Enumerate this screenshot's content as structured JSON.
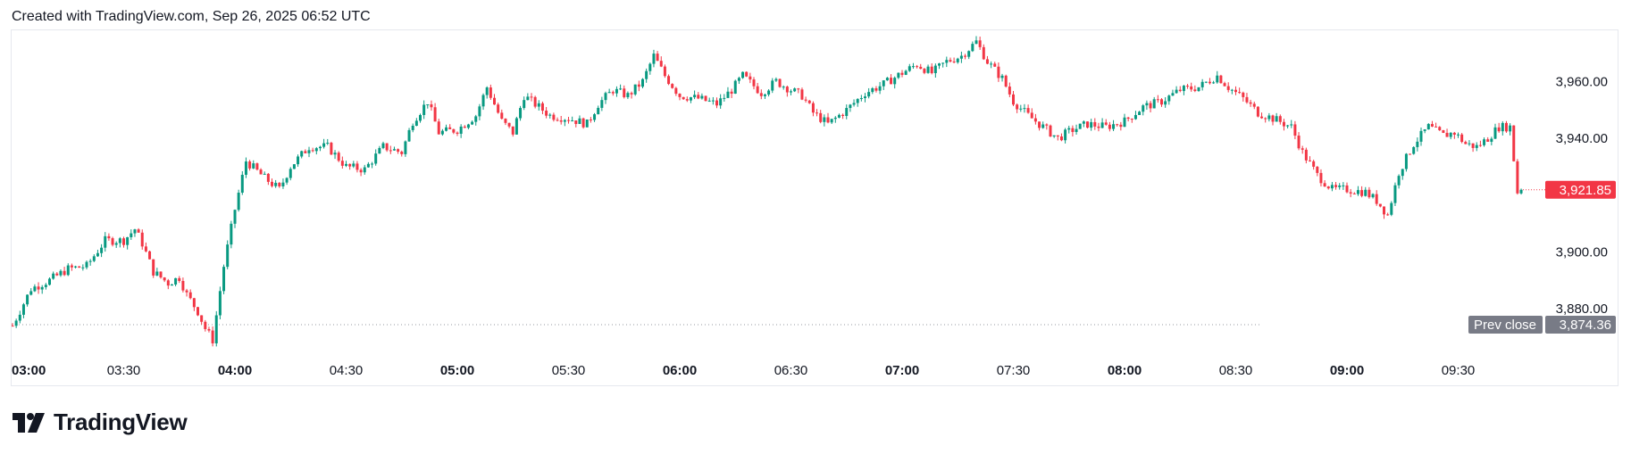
{
  "header": {
    "created_text": "Created with TradingView.com, Sep 26, 2025 06:52 UTC"
  },
  "logo": {
    "text": "TradingView",
    "icon": "tradingview-logo-icon"
  },
  "colors": {
    "up": "#089981",
    "down": "#f23645",
    "prev_close_tag": "#787b86",
    "last_price_tag": "#f23645"
  },
  "chart_data": {
    "type": "candlestick",
    "interval_minutes": 1,
    "x_tick_labels": [
      {
        "label": "03:00",
        "major": true
      },
      {
        "label": "03:30",
        "major": false
      },
      {
        "label": "04:00",
        "major": true
      },
      {
        "label": "04:30",
        "major": false
      },
      {
        "label": "05:00",
        "major": true
      },
      {
        "label": "05:30",
        "major": false
      },
      {
        "label": "06:00",
        "major": true
      },
      {
        "label": "06:30",
        "major": false
      },
      {
        "label": "07:00",
        "major": true
      },
      {
        "label": "07:30",
        "major": false
      },
      {
        "label": "08:00",
        "major": true
      },
      {
        "label": "08:30",
        "major": false
      },
      {
        "label": "09:00",
        "major": true
      },
      {
        "label": "09:30",
        "major": false
      }
    ],
    "y_tick_labels": [
      "3,960.00",
      "3,940.00",
      "3,900.00",
      "3,880.00"
    ],
    "y_ticks": [
      3960,
      3940,
      3900,
      3880
    ],
    "ylim": [
      3864,
      3978
    ],
    "x_start": "03:00",
    "x_end": "09:47",
    "last_price": {
      "label": "3,921.85",
      "value": 3921.85
    },
    "prev_close": {
      "label": "Prev close",
      "value_label": "3,874.36",
      "value": 3874.36
    },
    "price_path": [
      [
        "03:00",
        3874
      ],
      [
        "03:05",
        3887
      ],
      [
        "03:10",
        3890
      ],
      [
        "03:15",
        3894
      ],
      [
        "03:20",
        3895
      ],
      [
        "03:25",
        3904
      ],
      [
        "03:30",
        3904
      ],
      [
        "03:33",
        3908
      ],
      [
        "03:35",
        3903
      ],
      [
        "03:38",
        3893
      ],
      [
        "03:42",
        3889
      ],
      [
        "03:45",
        3891
      ],
      [
        "03:47",
        3885
      ],
      [
        "03:50",
        3879
      ],
      [
        "03:52",
        3873
      ],
      [
        "03:54",
        3869
      ],
      [
        "03:57",
        3895
      ],
      [
        "04:00",
        3915
      ],
      [
        "04:03",
        3932
      ],
      [
        "04:08",
        3926
      ],
      [
        "04:12",
        3922
      ],
      [
        "04:15",
        3930
      ],
      [
        "04:20",
        3937
      ],
      [
        "04:25",
        3937
      ],
      [
        "04:30",
        3930
      ],
      [
        "04:35",
        3929
      ],
      [
        "04:40",
        3937
      ],
      [
        "04:45",
        3935
      ],
      [
        "04:48",
        3946
      ],
      [
        "04:52",
        3953
      ],
      [
        "04:55",
        3942
      ],
      [
        "05:00",
        3943
      ],
      [
        "05:05",
        3948
      ],
      [
        "05:08",
        3958
      ],
      [
        "05:12",
        3946
      ],
      [
        "05:15",
        3942
      ],
      [
        "05:18",
        3955
      ],
      [
        "05:22",
        3951
      ],
      [
        "05:25",
        3948
      ],
      [
        "05:30",
        3947
      ],
      [
        "05:35",
        3945
      ],
      [
        "05:38",
        3952
      ],
      [
        "05:42",
        3957
      ],
      [
        "05:46",
        3955
      ],
      [
        "05:50",
        3960
      ],
      [
        "05:53",
        3969
      ],
      [
        "05:56",
        3962
      ],
      [
        "06:00",
        3955
      ],
      [
        "06:05",
        3954
      ],
      [
        "06:10",
        3952
      ],
      [
        "06:14",
        3957
      ],
      [
        "06:17",
        3962
      ],
      [
        "06:22",
        3956
      ],
      [
        "06:26",
        3960
      ],
      [
        "06:30",
        3957
      ],
      [
        "06:33",
        3955
      ],
      [
        "06:36",
        3949
      ],
      [
        "06:40",
        3945
      ],
      [
        "06:45",
        3950
      ],
      [
        "06:50",
        3956
      ],
      [
        "06:55",
        3959
      ],
      [
        "07:00",
        3963
      ],
      [
        "07:04",
        3966
      ],
      [
        "07:08",
        3963
      ],
      [
        "07:12",
        3967
      ],
      [
        "07:16",
        3969
      ],
      [
        "07:20",
        3974
      ],
      [
        "07:23",
        3967
      ],
      [
        "07:27",
        3961
      ],
      [
        "07:30",
        3953
      ],
      [
        "07:34",
        3948
      ],
      [
        "07:38",
        3944
      ],
      [
        "07:42",
        3940
      ],
      [
        "07:46",
        3943
      ],
      [
        "07:50",
        3945
      ],
      [
        "07:55",
        3944
      ],
      [
        "08:00",
        3946
      ],
      [
        "08:05",
        3951
      ],
      [
        "08:10",
        3953
      ],
      [
        "08:15",
        3957
      ],
      [
        "08:20",
        3958
      ],
      [
        "08:25",
        3962
      ],
      [
        "08:28",
        3958
      ],
      [
        "08:32",
        3954
      ],
      [
        "08:36",
        3949
      ],
      [
        "08:40",
        3947
      ],
      [
        "08:45",
        3944
      ],
      [
        "08:48",
        3935
      ],
      [
        "08:52",
        3927
      ],
      [
        "08:56",
        3922
      ],
      [
        "09:00",
        3922
      ],
      [
        "09:05",
        3921
      ],
      [
        "09:08",
        3918
      ],
      [
        "09:11",
        3913
      ],
      [
        "09:14",
        3928
      ],
      [
        "09:18",
        3938
      ],
      [
        "09:22",
        3944
      ],
      [
        "09:26",
        3941
      ],
      [
        "09:29",
        3942
      ],
      [
        "09:32",
        3938
      ],
      [
        "09:35",
        3937
      ],
      [
        "09:38",
        3940
      ],
      [
        "09:41",
        3944
      ],
      [
        "09:44",
        3944
      ],
      [
        "09:46",
        3921
      ],
      [
        "09:47",
        3921.85
      ]
    ]
  }
}
